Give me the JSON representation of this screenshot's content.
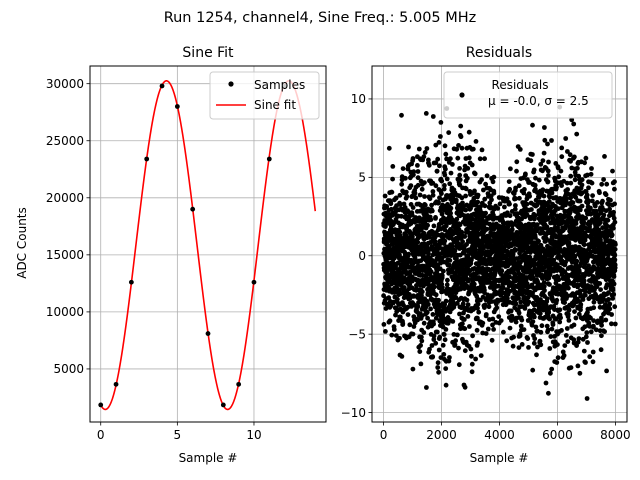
{
  "figure": {
    "suptitle": "Run 1254, channel4, Sine Freq.: 5.005 MHz"
  },
  "chart_data": [
    {
      "type": "line",
      "title": "Sine Fit",
      "xlabel": "Sample #",
      "ylabel": "ADC Counts",
      "xlim": [
        -0.7,
        14.7
      ],
      "ylim": [
        350,
        31550
      ],
      "xticks": [
        0,
        5,
        10
      ],
      "yticks": [
        5000,
        10000,
        15000,
        20000,
        25000,
        30000
      ],
      "grid": true,
      "legend_position": "top-right",
      "series": [
        {
          "name": "Samples",
          "kind": "scatter",
          "color": "#000000",
          "x": [
            0,
            1,
            2,
            3,
            4,
            5,
            6,
            7,
            8,
            9,
            10,
            11,
            12
          ],
          "y": [
            1850,
            3650,
            12600,
            23400,
            29800,
            28000,
            19000,
            8100,
            1850,
            3650,
            12600,
            23400,
            29800
          ]
        },
        {
          "name": "Sine fit",
          "kind": "line",
          "color": "#ff0000",
          "function": "sine",
          "offset": 15850,
          "amplitude": 14400,
          "period_samples": 7.98,
          "x_at_minimum": 0.3,
          "x_range": [
            0,
            14
          ]
        }
      ]
    },
    {
      "type": "scatter",
      "title": "Residuals",
      "xlabel": "Sample #",
      "ylabel": "",
      "xlim": [
        -400,
        8400
      ],
      "ylim": [
        -10.6,
        12.1
      ],
      "xticks": [
        0,
        2000,
        4000,
        6000,
        8000
      ],
      "yticks": [
        -10,
        -5,
        0,
        5,
        10
      ],
      "grid": true,
      "legend_position": "top-right",
      "series": [
        {
          "name": "Residuals",
          "color": "#000000",
          "n_points": 8000,
          "x_range": [
            0,
            7999
          ],
          "mean": -0.0,
          "sigma": 2.5,
          "y_min": -9.6,
          "y_max": 9.8
        }
      ],
      "legend_stats": "μ = -0.0, σ = 2.5"
    }
  ]
}
